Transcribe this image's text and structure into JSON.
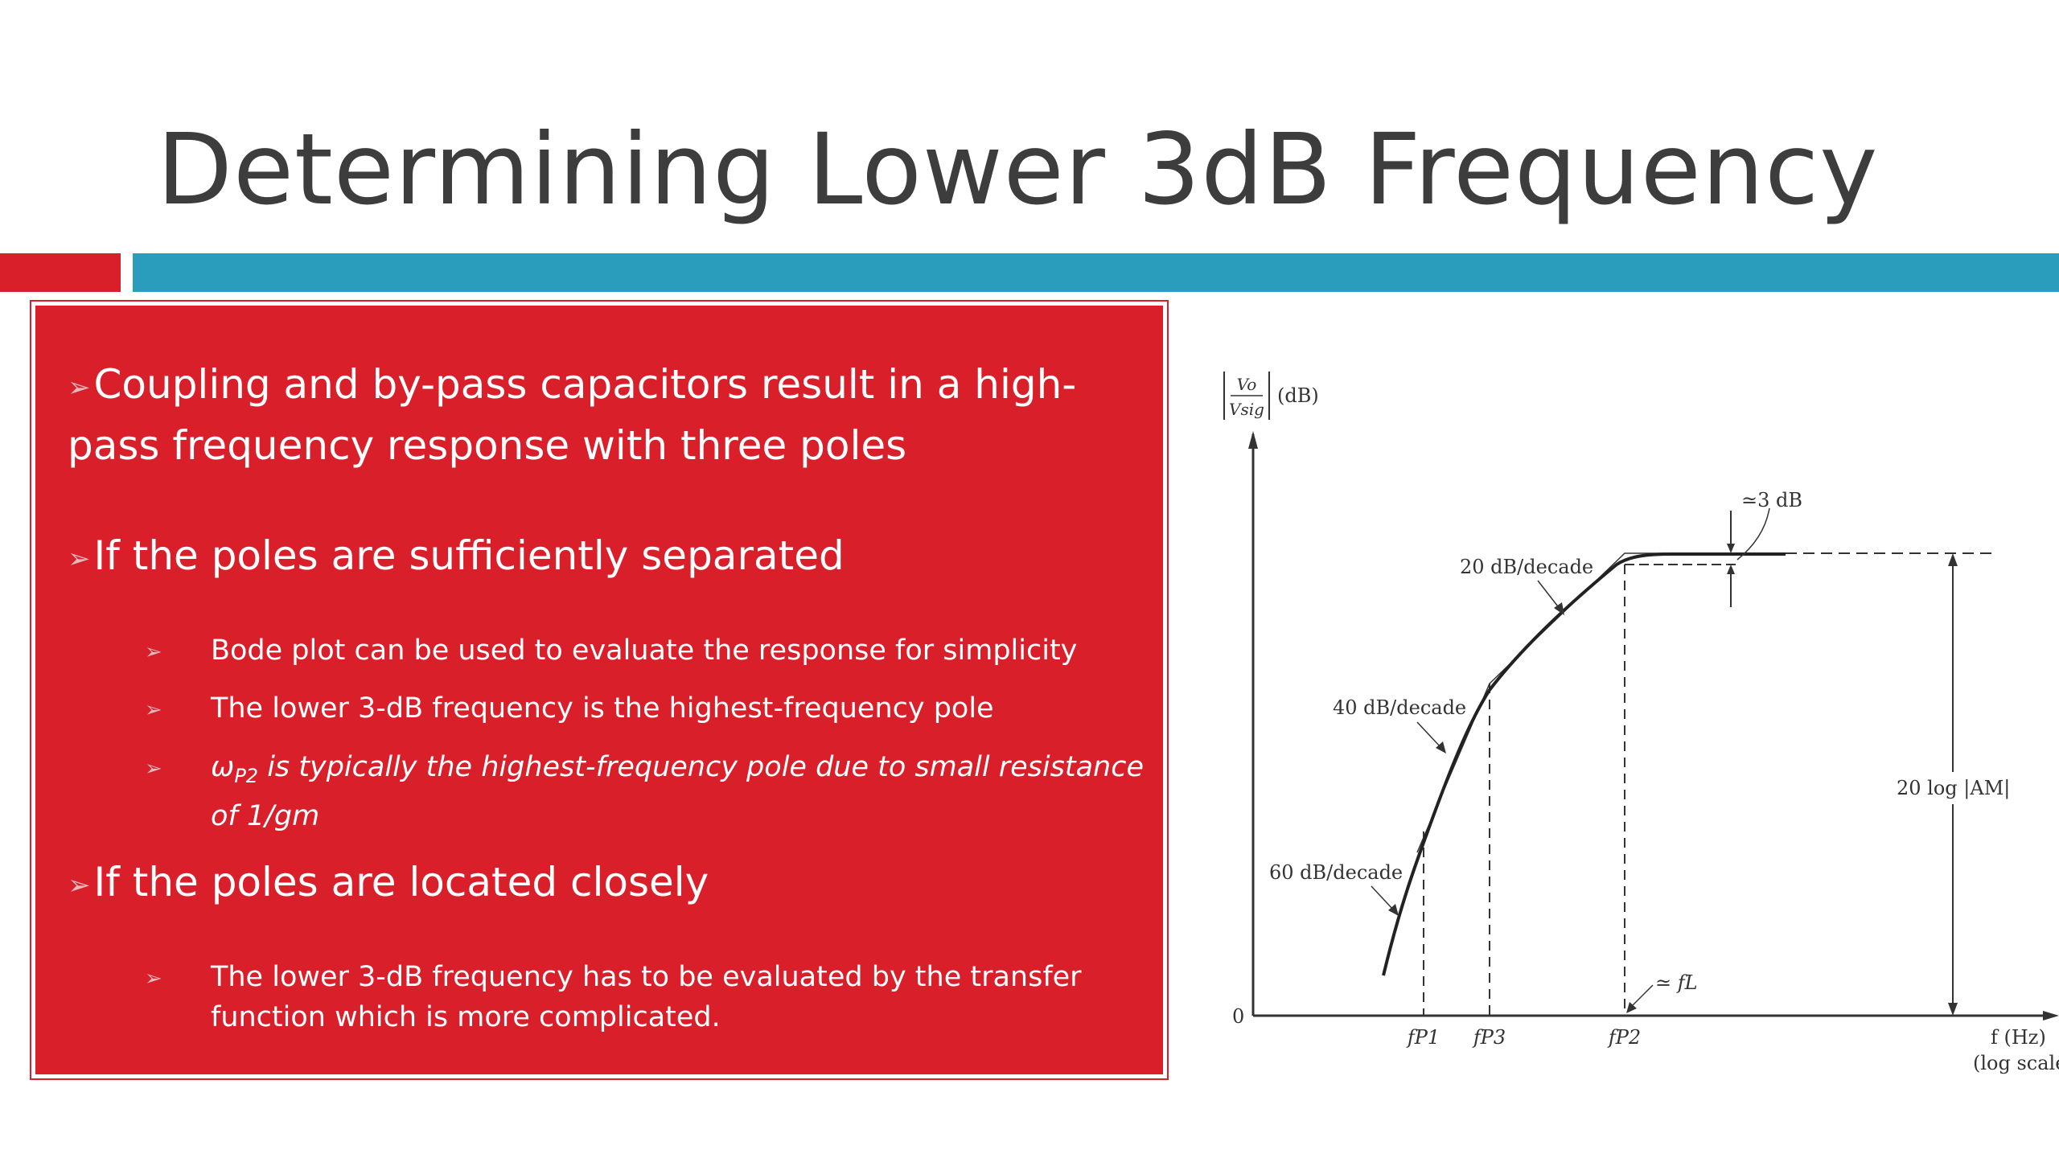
{
  "slide": {
    "title": "Determining Lower 3dB Frequency",
    "colors": {
      "accent_red": "#d81f2a",
      "accent_blue": "#2a9dbd",
      "title_text": "#3d3d3d",
      "body_text": "#ffffff"
    }
  },
  "content": {
    "bullet1": {
      "arrow": "➢",
      "text": "Coupling and by-pass capacitors result in a high-pass frequency response with three poles"
    },
    "bullet2": {
      "arrow": "➢",
      "text": "If the poles are sufficiently separated",
      "sub": [
        {
          "arrow": "➢",
          "text": "Bode plot can be used to evaluate the response for simplicity"
        },
        {
          "arrow": "➢",
          "text": "The lower 3-dB frequency is the highest-frequency pole"
        },
        {
          "arrow": "➢",
          "symbol": "ω",
          "subscript": "P2",
          "text": " is typically the highest-frequency pole due to small resistance of 1/gm"
        }
      ]
    },
    "bullet3": {
      "arrow": "➢",
      "text": "If the poles are located closely",
      "sub": [
        {
          "arrow": "➢",
          "text": "The lower 3-dB frequency has to be evaluated by the transfer function which is more complicated."
        }
      ]
    }
  },
  "diagram": {
    "y_axis_label": {
      "num": "Vo",
      "den": "Vsig",
      "unit": "(dB)"
    },
    "y_zero": "0",
    "x_axis_label": "f (Hz)",
    "x_axis_scale": "(log scale)",
    "x_ticks": [
      "fP1",
      "fP3",
      "fP2"
    ],
    "annotations": {
      "slope_60": "60 dB/decade",
      "slope_40": "40 dB/decade",
      "slope_20": "20 dB/decade",
      "minus3db": "≃3 dB",
      "fL": "≃ fL",
      "midband_gain": "20 log |AM|"
    }
  }
}
